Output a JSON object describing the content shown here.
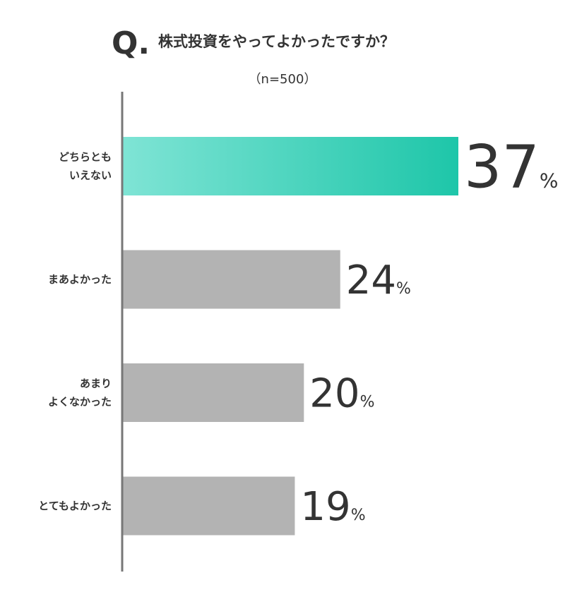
{
  "chart_data": {
    "type": "bar",
    "title_prefix": "Q.",
    "title": "株式投資をやってよかったですか？",
    "subtitle": "（n=500）",
    "categories": [
      "どちらとも\nいえない",
      "まあよかった",
      "あまり\nよくなかった",
      "とてもよかった"
    ],
    "values": [
      37,
      24,
      20,
      19
    ],
    "value_labels": [
      "37%",
      "24%",
      "20%",
      "19%"
    ],
    "colors": [
      "#1ec6a9",
      "#b3b3b3",
      "#b3b3b3",
      "#b3b3b3"
    ],
    "highlight_start_color": "#7fe4d5",
    "accent_color": "#3fd3bb"
  }
}
